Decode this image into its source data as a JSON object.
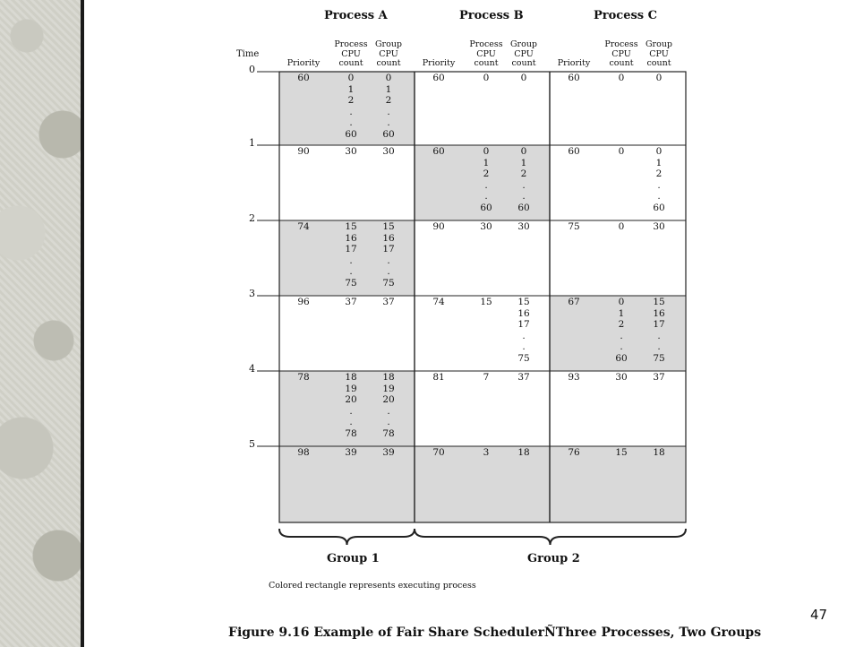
{
  "process_headers": [
    "Process A",
    "Process B",
    "Process C"
  ],
  "column_labels": {
    "time": "Time",
    "priority": "Priority",
    "process_cpu": [
      "Process",
      "CPU",
      "count"
    ],
    "group_cpu": [
      "Group",
      "CPU",
      "count"
    ]
  },
  "time_ticks": [
    "0",
    "1",
    "2",
    "3",
    "4",
    "5"
  ],
  "rows": [
    {
      "A": {
        "priority": "60",
        "proc": [
          "0",
          "1",
          "2",
          ".",
          ".",
          "60"
        ],
        "group": [
          "0",
          "1",
          "2",
          ".",
          ".",
          "60"
        ]
      },
      "B": {
        "priority": "60",
        "proc": [
          "0"
        ],
        "group": [
          "0"
        ]
      },
      "C": {
        "priority": "60",
        "proc": [
          "0"
        ],
        "group": [
          "0"
        ]
      }
    },
    {
      "A": {
        "priority": "90",
        "proc": [
          "30"
        ],
        "group": [
          "30"
        ]
      },
      "B": {
        "priority": "60",
        "proc": [
          "0",
          "1",
          "2",
          ".",
          ".",
          "60"
        ],
        "group": [
          "0",
          "1",
          "2",
          ".",
          ".",
          "60"
        ]
      },
      "C": {
        "priority": "60",
        "proc": [
          "0"
        ],
        "group": [
          "0",
          "1",
          "2",
          ".",
          ".",
          "60"
        ]
      }
    },
    {
      "A": {
        "priority": "74",
        "proc": [
          "15",
          "16",
          "17",
          ".",
          ".",
          "75"
        ],
        "group": [
          "15",
          "16",
          "17",
          ".",
          ".",
          "75"
        ]
      },
      "B": {
        "priority": "90",
        "proc": [
          "30"
        ],
        "group": [
          "30"
        ]
      },
      "C": {
        "priority": "75",
        "proc": [
          "0"
        ],
        "group": [
          "30"
        ]
      }
    },
    {
      "A": {
        "priority": "96",
        "proc": [
          "37"
        ],
        "group": [
          "37"
        ]
      },
      "B": {
        "priority": "74",
        "proc": [
          "15"
        ],
        "group": [
          "15",
          "16",
          "17",
          ".",
          ".",
          "75"
        ]
      },
      "C": {
        "priority": "67",
        "proc": [
          "0",
          "1",
          "2",
          ".",
          ".",
          "60"
        ],
        "group": [
          "15",
          "16",
          "17",
          ".",
          ".",
          "75"
        ]
      }
    },
    {
      "A": {
        "priority": "78",
        "proc": [
          "18",
          "19",
          "20",
          ".",
          ".",
          "78"
        ],
        "group": [
          "18",
          "19",
          "20",
          ".",
          ".",
          "78"
        ]
      },
      "B": {
        "priority": "81",
        "proc": [
          "7"
        ],
        "group": [
          "37"
        ]
      },
      "C": {
        "priority": "93",
        "proc": [
          "30"
        ],
        "group": [
          "37"
        ]
      }
    },
    {
      "A": {
        "priority": "98",
        "proc": [
          "39"
        ],
        "group": [
          "39"
        ]
      },
      "B": {
        "priority": "70",
        "proc": [
          "3"
        ],
        "group": [
          "18"
        ]
      },
      "C": {
        "priority": "76",
        "proc": [
          "15"
        ],
        "group": [
          "18"
        ]
      }
    }
  ],
  "groups": [
    "Group 1",
    "Group 2"
  ],
  "note": "Colored rectangle represents executing process",
  "caption": "Figure 9.16    Example of Fair Share SchedulerÑThree Processes, Two Groups",
  "page_number": "47",
  "colors": {
    "fill": "#d9d9d9",
    "line": "#222222",
    "strip_edge": "#1a1a1a"
  }
}
